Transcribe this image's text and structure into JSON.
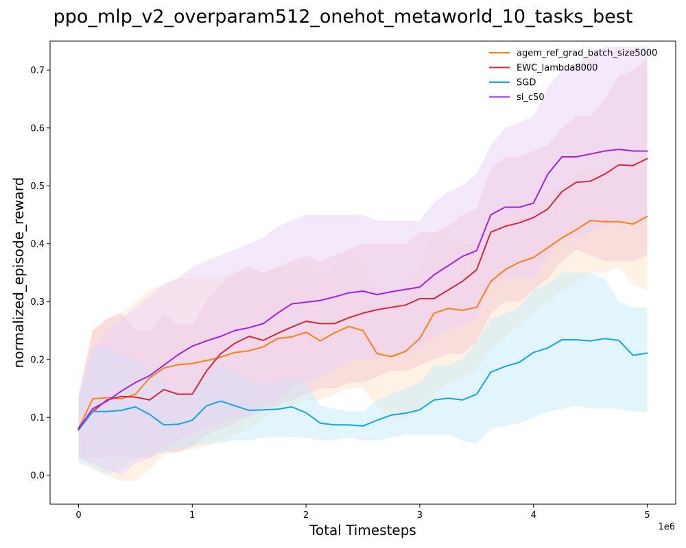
{
  "chart_data": {
    "type": "line",
    "title": "ppo_mlp_v2_overparam512_onehot_metaworld_10_tasks_best",
    "xlabel": "Total Timesteps",
    "ylabel": "normalized_episode_reward",
    "x_offset_label": "1e6",
    "xlim": [
      -0.25,
      5.25
    ],
    "ylim": [
      -0.05,
      0.75
    ],
    "x_ticks": [
      0,
      1,
      2,
      3,
      4,
      5
    ],
    "x_tick_labels": [
      "0",
      "1",
      "2",
      "3",
      "4",
      "5"
    ],
    "y_ticks": [
      0.0,
      0.1,
      0.2,
      0.3,
      0.4,
      0.5,
      0.6,
      0.7
    ],
    "y_tick_labels": [
      "0.0",
      "0.1",
      "0.2",
      "0.3",
      "0.4",
      "0.5",
      "0.6",
      "0.7"
    ],
    "grid": false,
    "legend": "top-right",
    "x": [
      0,
      0.125,
      0.25,
      0.375,
      0.5,
      0.625,
      0.75,
      0.875,
      1.0,
      1.125,
      1.25,
      1.375,
      1.5,
      1.625,
      1.75,
      1.875,
      2.0,
      2.125,
      2.25,
      2.375,
      2.5,
      2.625,
      2.75,
      2.875,
      3.0,
      3.125,
      3.25,
      3.375,
      3.5,
      3.625,
      3.75,
      3.875,
      4.0,
      4.125,
      4.25,
      4.375,
      4.5,
      4.625,
      4.75,
      4.875,
      5.0
    ],
    "series": [
      {
        "name": "agem_ref_grad_batch_size5000",
        "color": "#ff7f0e",
        "fill": "#ffe5cc",
        "values": [
          0.08,
          0.132,
          0.134,
          0.132,
          0.14,
          0.168,
          0.185,
          0.191,
          0.193,
          0.198,
          0.204,
          0.212,
          0.215,
          0.222,
          0.236,
          0.239,
          0.247,
          0.232,
          0.246,
          0.257,
          0.25,
          0.21,
          0.205,
          0.214,
          0.236,
          0.28,
          0.288,
          0.285,
          0.29,
          0.335,
          0.355,
          0.368,
          0.376,
          0.393,
          0.41,
          0.424,
          0.44,
          0.438,
          0.438,
          0.434,
          0.447
        ],
        "lower": [
          0.03,
          0.01,
          0.0,
          -0.01,
          -0.01,
          0.01,
          0.035,
          0.04,
          0.045,
          0.05,
          0.06,
          0.07,
          0.08,
          0.1,
          0.11,
          0.12,
          0.13,
          0.13,
          0.14,
          0.15,
          0.15,
          0.12,
          0.1,
          0.1,
          0.11,
          0.14,
          0.16,
          0.17,
          0.18,
          0.22,
          0.24,
          0.26,
          0.28,
          0.3,
          0.32,
          0.33,
          0.35,
          0.35,
          0.36,
          0.33,
          0.32
        ],
        "upper": [
          0.13,
          0.25,
          0.27,
          0.28,
          0.3,
          0.32,
          0.33,
          0.34,
          0.34,
          0.34,
          0.34,
          0.35,
          0.35,
          0.35,
          0.36,
          0.36,
          0.37,
          0.34,
          0.36,
          0.39,
          0.37,
          0.32,
          0.31,
          0.33,
          0.36,
          0.42,
          0.41,
          0.4,
          0.4,
          0.45,
          0.47,
          0.48,
          0.47,
          0.49,
          0.5,
          0.52,
          0.53,
          0.53,
          0.52,
          0.54,
          0.56
        ]
      },
      {
        "name": "EWC_lambda8000",
        "color": "#d62738",
        "fill": "#f4c7cf",
        "values": [
          0.082,
          0.11,
          0.13,
          0.136,
          0.135,
          0.13,
          0.148,
          0.14,
          0.14,
          0.18,
          0.21,
          0.228,
          0.24,
          0.233,
          0.245,
          0.256,
          0.266,
          0.262,
          0.262,
          0.272,
          0.28,
          0.286,
          0.29,
          0.294,
          0.305,
          0.305,
          0.32,
          0.335,
          0.355,
          0.42,
          0.43,
          0.436,
          0.445,
          0.46,
          0.49,
          0.506,
          0.508,
          0.52,
          0.536,
          0.535,
          0.547
        ],
        "lower": [
          0.03,
          0.03,
          0.03,
          0.035,
          0.03,
          0.03,
          0.04,
          0.04,
          0.05,
          0.07,
          0.08,
          0.09,
          0.1,
          0.11,
          0.12,
          0.13,
          0.14,
          0.15,
          0.15,
          0.16,
          0.16,
          0.17,
          0.18,
          0.18,
          0.19,
          0.2,
          0.21,
          0.21,
          0.23,
          0.28,
          0.3,
          0.3,
          0.32,
          0.34,
          0.37,
          0.39,
          0.38,
          0.37,
          0.37,
          0.37,
          0.38
        ],
        "upper": [
          0.14,
          0.25,
          0.27,
          0.28,
          0.25,
          0.25,
          0.28,
          0.26,
          0.26,
          0.3,
          0.33,
          0.35,
          0.36,
          0.35,
          0.36,
          0.37,
          0.38,
          0.37,
          0.38,
          0.39,
          0.4,
          0.4,
          0.4,
          0.4,
          0.42,
          0.42,
          0.43,
          0.45,
          0.46,
          0.53,
          0.55,
          0.55,
          0.56,
          0.57,
          0.6,
          0.62,
          0.62,
          0.65,
          0.69,
          0.7,
          0.72
        ]
      },
      {
        "name": "SGD",
        "color": "#0ea5e9",
        "fill": "#c8ecf9",
        "values": [
          0.078,
          0.11,
          0.11,
          0.112,
          0.118,
          0.105,
          0.087,
          0.088,
          0.095,
          0.12,
          0.128,
          0.12,
          0.112,
          0.113,
          0.114,
          0.118,
          0.108,
          0.09,
          0.087,
          0.087,
          0.085,
          0.095,
          0.104,
          0.107,
          0.113,
          0.13,
          0.133,
          0.13,
          0.14,
          0.178,
          0.188,
          0.195,
          0.212,
          0.22,
          0.234,
          0.234,
          0.232,
          0.236,
          0.233,
          0.207,
          0.211
        ],
        "lower": [
          0.02,
          0.015,
          0.0,
          0.01,
          0.03,
          0.035,
          0.04,
          0.045,
          0.05,
          0.055,
          0.055,
          0.06,
          0.06,
          0.065,
          0.065,
          0.065,
          0.065,
          0.06,
          0.06,
          0.065,
          0.06,
          0.06,
          0.065,
          0.07,
          0.07,
          0.07,
          0.07,
          0.06,
          0.055,
          0.08,
          0.085,
          0.09,
          0.1,
          0.11,
          0.115,
          0.12,
          0.115,
          0.115,
          0.115,
          0.11,
          0.11
        ],
        "upper": [
          0.135,
          0.22,
          0.22,
          0.21,
          0.2,
          0.18,
          0.16,
          0.14,
          0.14,
          0.17,
          0.19,
          0.18,
          0.16,
          0.16,
          0.16,
          0.17,
          0.16,
          0.12,
          0.115,
          0.11,
          0.11,
          0.13,
          0.14,
          0.15,
          0.16,
          0.19,
          0.19,
          0.2,
          0.23,
          0.27,
          0.28,
          0.29,
          0.32,
          0.33,
          0.35,
          0.35,
          0.35,
          0.34,
          0.3,
          0.29,
          0.29
        ]
      },
      {
        "name": "si_c50",
        "color": "#a020f0",
        "fill": "#ead2f7",
        "values": [
          0.08,
          0.115,
          0.128,
          0.145,
          0.16,
          0.172,
          0.19,
          0.208,
          0.223,
          0.232,
          0.24,
          0.25,
          0.255,
          0.262,
          0.28,
          0.296,
          0.299,
          0.302,
          0.308,
          0.315,
          0.318,
          0.312,
          0.317,
          0.321,
          0.325,
          0.346,
          0.362,
          0.378,
          0.388,
          0.45,
          0.463,
          0.463,
          0.47,
          0.52,
          0.55,
          0.55,
          0.555,
          0.56,
          0.563,
          0.56,
          0.56
        ],
        "lower": [
          0.03,
          0.02,
          0.01,
          0.0,
          0.02,
          0.03,
          0.05,
          0.06,
          0.07,
          0.08,
          0.09,
          0.1,
          0.1,
          0.12,
          0.13,
          0.15,
          0.16,
          0.17,
          0.18,
          0.2,
          0.2,
          0.2,
          0.21,
          0.21,
          0.22,
          0.24,
          0.25,
          0.26,
          0.27,
          0.33,
          0.34,
          0.34,
          0.34,
          0.38,
          0.41,
          0.41,
          0.42,
          0.43,
          0.44,
          0.44,
          0.44
        ],
        "upper": [
          0.13,
          0.22,
          0.25,
          0.27,
          0.29,
          0.31,
          0.33,
          0.34,
          0.36,
          0.37,
          0.38,
          0.39,
          0.4,
          0.41,
          0.43,
          0.44,
          0.45,
          0.45,
          0.45,
          0.45,
          0.45,
          0.44,
          0.44,
          0.44,
          0.44,
          0.47,
          0.49,
          0.5,
          0.52,
          0.57,
          0.6,
          0.61,
          0.62,
          0.67,
          0.7,
          0.71,
          0.73,
          0.74,
          0.74,
          0.74,
          0.74
        ]
      }
    ]
  }
}
